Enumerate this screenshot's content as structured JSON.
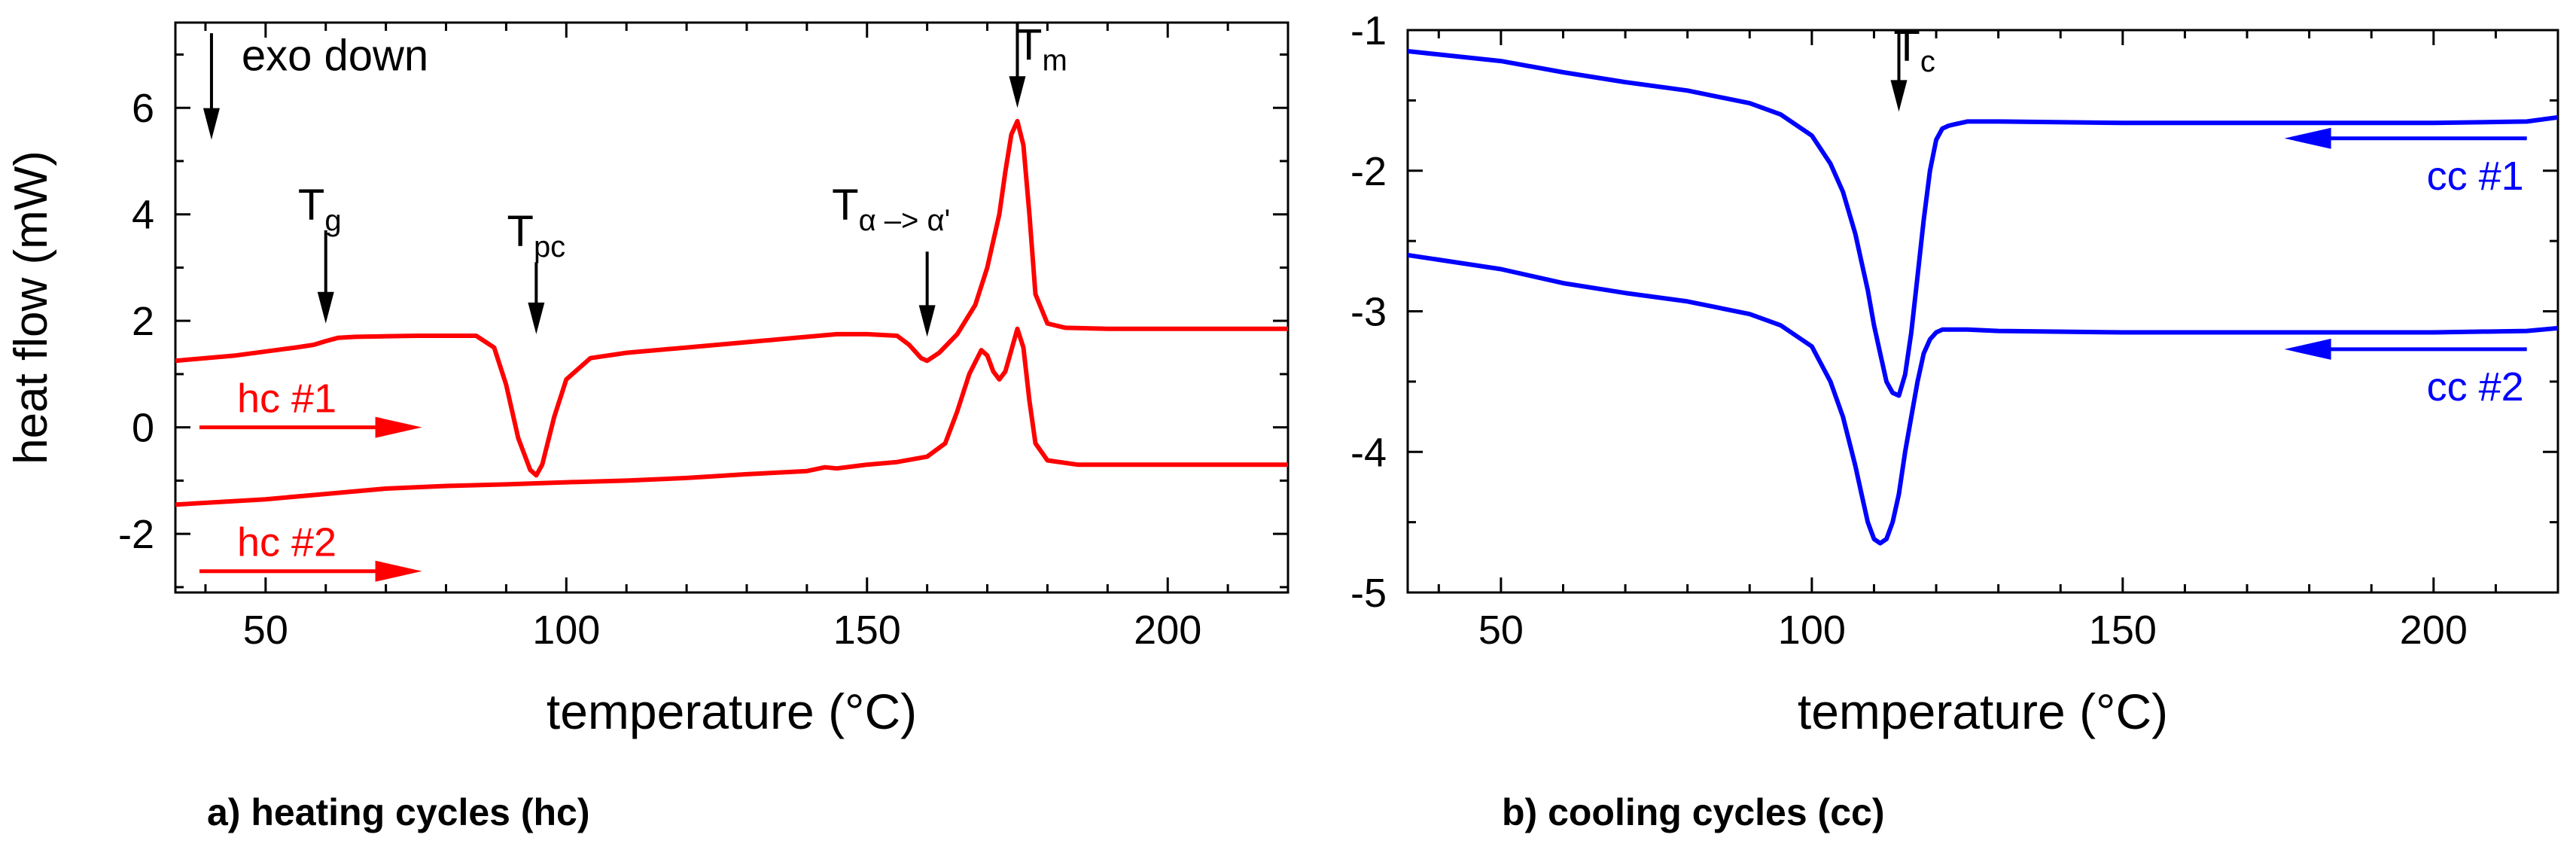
{
  "chart_data": [
    {
      "type": "line",
      "panel_id": "a",
      "caption": "a) heating cycles (hc)",
      "xlabel": "temperature (°C)",
      "ylabel": "heat flow (mW)",
      "xlim": [
        35,
        220
      ],
      "ylim": [
        -3.1,
        7.6
      ],
      "xticks": [
        50,
        100,
        150,
        200
      ],
      "yticks": [
        -2,
        0,
        2,
        4,
        6
      ],
      "color": "#ff0000",
      "series": [
        {
          "name": "hc #1",
          "x": [
            35,
            45,
            55,
            58,
            60,
            62,
            65,
            75,
            85,
            88,
            90,
            92,
            94,
            95,
            96,
            98,
            100,
            104,
            110,
            120,
            130,
            140,
            145,
            150,
            155,
            157,
            159,
            160,
            162,
            165,
            168,
            170,
            172,
            173,
            174,
            175,
            176,
            177,
            178,
            180,
            183,
            190,
            200,
            210,
            220
          ],
          "y": [
            1.25,
            1.35,
            1.5,
            1.55,
            1.62,
            1.68,
            1.7,
            1.72,
            1.72,
            1.5,
            0.8,
            -0.2,
            -0.8,
            -0.9,
            -0.7,
            0.2,
            0.9,
            1.3,
            1.4,
            1.5,
            1.6,
            1.7,
            1.75,
            1.75,
            1.72,
            1.55,
            1.3,
            1.25,
            1.4,
            1.75,
            2.3,
            3.0,
            4.0,
            4.8,
            5.5,
            5.75,
            5.3,
            4.0,
            2.5,
            1.95,
            1.87,
            1.85,
            1.85,
            1.85,
            1.85
          ]
        },
        {
          "name": "hc #2",
          "x": [
            35,
            50,
            60,
            70,
            80,
            90,
            100,
            110,
            120,
            130,
            140,
            143,
            145,
            150,
            155,
            160,
            163,
            165,
            167,
            169,
            170,
            171,
            172,
            173,
            174,
            175,
            176,
            177,
            178,
            180,
            185,
            200,
            220
          ],
          "y": [
            -1.45,
            -1.35,
            -1.25,
            -1.15,
            -1.1,
            -1.07,
            -1.03,
            -1.0,
            -0.95,
            -0.88,
            -0.82,
            -0.75,
            -0.77,
            -0.7,
            -0.65,
            -0.55,
            -0.3,
            0.3,
            1.0,
            1.45,
            1.35,
            1.05,
            0.9,
            1.05,
            1.45,
            1.85,
            1.5,
            0.5,
            -0.3,
            -0.62,
            -0.7,
            -0.7,
            -0.7
          ]
        }
      ],
      "legend_arrows": [
        {
          "label": "hc #1",
          "x_from": 39,
          "x_to": 76,
          "y": 0
        },
        {
          "label": "hc #2",
          "x_from": 39,
          "x_to": 76,
          "y": -2.7
        }
      ],
      "annotations": [
        {
          "label": "exo down",
          "sub": "",
          "arrow_x": 41,
          "arrow_y_top": 7.4,
          "arrow_y_tip": 5.4,
          "text_x": 46,
          "text_y": 6.7
        },
        {
          "label": "T",
          "sub": "g",
          "arrow_x": 60,
          "arrow_y_top": 3.7,
          "arrow_y_tip": 1.95,
          "text_x": 59,
          "text_y": 3.9
        },
        {
          "label": "T",
          "sub": "pc",
          "arrow_x": 95,
          "arrow_y_top": 3.1,
          "arrow_y_tip": 1.75,
          "text_x": 95,
          "text_y": 3.4
        },
        {
          "label": "T",
          "sub": "α –> α'",
          "arrow_x": 160,
          "arrow_y_top": 3.3,
          "arrow_y_tip": 1.7,
          "text_x": 154,
          "text_y": 3.9
        },
        {
          "label": "T",
          "sub": "m",
          "arrow_x": 175,
          "arrow_y_top": 7.6,
          "arrow_y_tip": 6.0,
          "text_x": 179,
          "text_y": 6.9
        }
      ]
    },
    {
      "type": "line",
      "panel_id": "b",
      "caption": "b) cooling cycles (cc)",
      "xlabel": "temperature (°C)",
      "ylabel": "",
      "xlim": [
        35,
        220
      ],
      "ylim": [
        -5.0,
        -1.0
      ],
      "xticks": [
        50,
        100,
        150,
        200
      ],
      "yticks": [
        -5,
        -4,
        -3,
        -2,
        -1
      ],
      "color": "#0000ff",
      "series": [
        {
          "name": "cc #1",
          "x": [
            35,
            50,
            60,
            70,
            80,
            90,
            95,
            100,
            103,
            105,
            107,
            108,
            109,
            110,
            111,
            112,
            113,
            114,
            115,
            116,
            117,
            118,
            119,
            120,
            121,
            122,
            123,
            125,
            130,
            150,
            200,
            215,
            220
          ],
          "y": [
            -1.15,
            -1.22,
            -1.3,
            -1.37,
            -1.43,
            -1.52,
            -1.6,
            -1.75,
            -1.95,
            -2.15,
            -2.45,
            -2.65,
            -2.85,
            -3.1,
            -3.3,
            -3.5,
            -3.58,
            -3.6,
            -3.45,
            -3.15,
            -2.75,
            -2.35,
            -2.0,
            -1.78,
            -1.7,
            -1.68,
            -1.67,
            -1.65,
            -1.65,
            -1.66,
            -1.66,
            -1.65,
            -1.62
          ]
        },
        {
          "name": "cc #2",
          "x": [
            35,
            50,
            60,
            70,
            80,
            90,
            95,
            100,
            103,
            105,
            107,
            108,
            109,
            110,
            111,
            112,
            113,
            114,
            115,
            116,
            117,
            118,
            119,
            120,
            121,
            122,
            123,
            125,
            130,
            150,
            200,
            215,
            220
          ],
          "y": [
            -2.6,
            -2.7,
            -2.8,
            -2.87,
            -2.93,
            -3.02,
            -3.1,
            -3.25,
            -3.5,
            -3.75,
            -4.1,
            -4.3,
            -4.5,
            -4.62,
            -4.65,
            -4.62,
            -4.5,
            -4.3,
            -4.0,
            -3.75,
            -3.5,
            -3.3,
            -3.2,
            -3.15,
            -3.13,
            -3.13,
            -3.13,
            -3.13,
            -3.14,
            -3.15,
            -3.15,
            -3.14,
            -3.12
          ]
        }
      ],
      "legend_arrows": [
        {
          "label": "cc #1",
          "x_from": 215,
          "x_to": 176,
          "y": -1.77
        },
        {
          "label": "cc #2",
          "x_from": 215,
          "x_to": 176,
          "y": -3.27
        }
      ],
      "annotations": [
        {
          "label": "T",
          "sub": "c",
          "arrow_x": 114,
          "arrow_y_top": -1.0,
          "arrow_y_tip": -1.58,
          "text_x": 116.5,
          "text_y": -1.22
        }
      ]
    }
  ]
}
